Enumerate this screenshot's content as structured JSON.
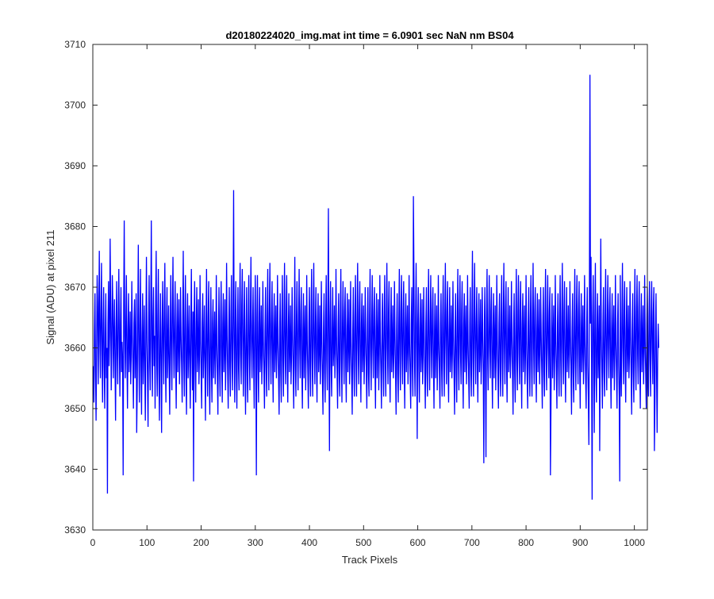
{
  "window": {
    "background": "#ffffff"
  },
  "chart_data": {
    "type": "line",
    "title": "d20180224020_img.mat int time = 6.0901 sec  NaN nm BS04",
    "xlabel": "Track Pixels",
    "ylabel": "Signal (ADU) at pixel 211",
    "xlim": [
      0,
      1024
    ],
    "ylim": [
      3630,
      3710
    ],
    "xticks": [
      0,
      100,
      200,
      300,
      400,
      500,
      600,
      700,
      800,
      900,
      1000
    ],
    "yticks": [
      3630,
      3640,
      3650,
      3660,
      3670,
      3680,
      3690,
      3700,
      3710
    ],
    "xtick_labels": [
      "0",
      "100",
      "200",
      "300",
      "400",
      "500",
      "600",
      "700",
      "800",
      "900",
      "1000"
    ],
    "ytick_labels": [
      "3630",
      "3640",
      "3650",
      "3660",
      "3670",
      "3680",
      "3690",
      "3700",
      "3710"
    ],
    "grid": false,
    "legend": "none",
    "colors": {
      "series": "#0000ff",
      "axes": "#262626",
      "background": "#ffffff"
    },
    "series": [
      {
        "x_start": 1,
        "x_step": 1,
        "values": [
          3657,
          3651,
          3663,
          3669,
          3656,
          3648,
          3660,
          3672,
          3667,
          3654,
          3665,
          3676,
          3661,
          3655,
          3666,
          3674,
          3659,
          3651,
          3664,
          3670,
          3657,
          3650,
          3662,
          3669,
          3655,
          3660,
          3636,
          3664,
          3671,
          3657,
          3662,
          3678,
          3666,
          3653,
          3660,
          3672,
          3667,
          3655,
          3662,
          3668,
          3657,
          3648,
          3663,
          3671,
          3659,
          3654,
          3665,
          3673,
          3660,
          3652,
          3664,
          3670,
          3656,
          3661,
          3658,
          3639,
          3667,
          3681,
          3662,
          3655,
          3664,
          3672,
          3658,
          3650,
          3663,
          3669,
          3656,
          3661,
          3666,
          3654,
          3659,
          3671,
          3662,
          3657,
          3650,
          3664,
          3668,
          3655,
          3661,
          3669,
          3646,
          3653,
          3665,
          3677,
          3659,
          3651,
          3664,
          3673,
          3657,
          3649,
          3662,
          3669,
          3654,
          3660,
          3667,
          3656,
          3648,
          3663,
          3675,
          3661,
          3655,
          3647,
          3664,
          3672,
          3658,
          3653,
          3666,
          3681,
          3660,
          3652,
          3665,
          3670,
          3657,
          3662,
          3650,
          3667,
          3676,
          3658,
          3652,
          3665,
          3673,
          3656,
          3648,
          3661,
          3669,
          3657,
          3646,
          3663,
          3671,
          3660,
          3654,
          3666,
          3674,
          3658,
          3651,
          3664,
          3670,
          3655,
          3660,
          3667,
          3656,
          3649,
          3663,
          3672,
          3659,
          3653,
          3666,
          3675,
          3661,
          3655,
          3664,
          3671,
          3657,
          3650,
          3663,
          3669,
          3656,
          3661,
          3668,
          3654,
          3659,
          3670,
          3662,
          3657,
          3651,
          3664,
          3676,
          3658,
          3652,
          3665,
          3672,
          3656,
          3649,
          3663,
          3669,
          3655,
          3660,
          3667,
          3657,
          3650,
          3664,
          3673,
          3659,
          3653,
          3666,
          3638,
          3665,
          3671,
          3657,
          3651,
          3664,
          3670,
          3656,
          3660,
          3668,
          3654,
          3659,
          3672,
          3661,
          3656,
          3650,
          3664,
          3669,
          3655,
          3660,
          3667,
          3657,
          3648,
          3663,
          3673,
          3658,
          3652,
          3665,
          3671,
          3656,
          3649,
          3662,
          3670,
          3657,
          3651,
          3664,
          3668,
          3655,
          3660,
          3666,
          3654,
          3659,
          3672,
          3661,
          3655,
          3649,
          3663,
          3670,
          3657,
          3652,
          3665,
          3671,
          3658,
          3651,
          3664,
          3669,
          3656,
          3660,
          3668,
          3653,
          3659,
          3674,
          3662,
          3656,
          3650,
          3663,
          3670,
          3657,
          3652,
          3665,
          3672,
          3658,
          3653,
          3666,
          3686,
          3661,
          3651,
          3664,
          3671,
          3656,
          3650,
          3663,
          3670,
          3657,
          3653,
          3666,
          3674,
          3659,
          3654,
          3667,
          3673,
          3660,
          3652,
          3664,
          3671,
          3657,
          3649,
          3662,
          3670,
          3656,
          3651,
          3664,
          3672,
          3659,
          3653,
          3666,
          3675,
          3660,
          3655,
          3663,
          3670,
          3657,
          3650,
          3664,
          3672,
          3658,
          3639,
          3665,
          3672,
          3657,
          3651,
          3664,
          3670,
          3656,
          3660,
          3667,
          3654,
          3659,
          3671,
          3661,
          3656,
          3650,
          3663,
          3670,
          3657,
          3652,
          3665,
          3673,
          3659,
          3653,
          3666,
          3674,
          3660,
          3654,
          3664,
          3671,
          3658,
          3651,
          3664,
          3669,
          3656,
          3661,
          3667,
          3655,
          3660,
          3672,
          3661,
          3655,
          3649,
          3663,
          3669,
          3656,
          3651,
          3664,
          3672,
          3658,
          3652,
          3665,
          3674,
          3659,
          3654,
          3666,
          3672,
          3657,
          3651,
          3663,
          3669,
          3656,
          3660,
          3667,
          3654,
          3659,
          3670,
          3662,
          3656,
          3650,
          3664,
          3675,
          3657,
          3652,
          3665,
          3671,
          3659,
          3653,
          3664,
          3673,
          3660,
          3655,
          3666,
          3670,
          3656,
          3650,
          3663,
          3669,
          3655,
          3661,
          3667,
          3653,
          3659,
          3672,
          3661,
          3656,
          3650,
          3664,
          3670,
          3657,
          3652,
          3665,
          3673,
          3658,
          3652,
          3665,
          3674,
          3660,
          3654,
          3664,
          3670,
          3657,
          3651,
          3664,
          3669,
          3656,
          3660,
          3667,
          3654,
          3659,
          3671,
          3661,
          3655,
          3649,
          3663,
          3669,
          3656,
          3651,
          3665,
          3672,
          3658,
          3653,
          3666,
          3683,
          3659,
          3643,
          3665,
          3671,
          3657,
          3652,
          3663,
          3670,
          3657,
          3660,
          3667,
          3655,
          3659,
          3673,
          3662,
          3656,
          3650,
          3664,
          3669,
          3656,
          3652,
          3665,
          3673,
          3658,
          3651,
          3664,
          3671,
          3660,
          3654,
          3666,
          3670,
          3657,
          3651,
          3663,
          3669,
          3656,
          3661,
          3668,
          3654,
          3659,
          3671,
          3661,
          3655,
          3649,
          3663,
          3670,
          3657,
          3652,
          3665,
          3672,
          3658,
          3652,
          3665,
          3674,
          3660,
          3654,
          3666,
          3671,
          3658,
          3651,
          3664,
          3669,
          3656,
          3660,
          3667,
          3654,
          3659,
          3670,
          3662,
          3656,
          3650,
          3664,
          3670,
          3656,
          3652,
          3665,
          3673,
          3659,
          3653,
          3664,
          3672,
          3660,
          3655,
          3666,
          3670,
          3657,
          3650,
          3663,
          3669,
          3655,
          3661,
          3668,
          3653,
          3659,
          3672,
          3661,
          3656,
          3650,
          3664,
          3669,
          3657,
          3652,
          3665,
          3672,
          3658,
          3652,
          3665,
          3674,
          3660,
          3654,
          3666,
          3671,
          3657,
          3651,
          3663,
          3670,
          3656,
          3660,
          3667,
          3655,
          3659,
          3671,
          3662,
          3656,
          3649,
          3663,
          3669,
          3656,
          3651,
          3664,
          3673,
          3658,
          3653,
          3666,
          3672,
          3659,
          3654,
          3666,
          3671,
          3657,
          3650,
          3664,
          3669,
          3656,
          3661,
          3667,
          3654,
          3659,
          3672,
          3661,
          3655,
          3650,
          3664,
          3670,
          3657,
          3652,
          3685,
          3672,
          3658,
          3652,
          3665,
          3674,
          3660,
          3645,
          3664,
          3670,
          3657,
          3651,
          3663,
          3669,
          3656,
          3660,
          3668,
          3654,
          3659,
          3670,
          3662,
          3656,
          3650,
          3664,
          3670,
          3656,
          3652,
          3665,
          3673,
          3659,
          3653,
          3664,
          3672,
          3660,
          3655,
          3666,
          3670,
          3657,
          3650,
          3663,
          3669,
          3655,
          3661,
          3667,
          3653,
          3659,
          3672,
          3661,
          3656,
          3650,
          3664,
          3669,
          3657,
          3652,
          3665,
          3672,
          3658,
          3652,
          3665,
          3674,
          3660,
          3654,
          3666,
          3671,
          3657,
          3651,
          3663,
          3670,
          3656,
          3660,
          3667,
          3655,
          3659,
          3671,
          3662,
          3656,
          3649,
          3663,
          3669,
          3656,
          3651,
          3664,
          3673,
          3658,
          3653,
          3666,
          3672,
          3659,
          3654,
          3666,
          3671,
          3657,
          3650,
          3664,
          3669,
          3656,
          3661,
          3667,
          3654,
          3659,
          3672,
          3661,
          3655,
          3650,
          3664,
          3670,
          3657,
          3652,
          3665,
          3676,
          3658,
          3652,
          3665,
          3674,
          3660,
          3654,
          3664,
          3670,
          3657,
          3651,
          3663,
          3669,
          3656,
          3660,
          3668,
          3654,
          3659,
          3670,
          3662,
          3656,
          3641,
          3664,
          3670,
          3656,
          3642,
          3665,
          3673,
          3659,
          3653,
          3664,
          3672,
          3660,
          3655,
          3666,
          3670,
          3657,
          3650,
          3663,
          3669,
          3655,
          3661,
          3667,
          3653,
          3659,
          3672,
          3661,
          3656,
          3650,
          3664,
          3669,
          3657,
          3652,
          3665,
          3672,
          3658,
          3652,
          3665,
          3674,
          3660,
          3654,
          3666,
          3671,
          3657,
          3651,
          3663,
          3670,
          3656,
          3660,
          3667,
          3655,
          3659,
          3671,
          3662,
          3656,
          3649,
          3663,
          3669,
          3656,
          3651,
          3664,
          3673,
          3658,
          3653,
          3666,
          3672,
          3659,
          3654,
          3666,
          3671,
          3657,
          3650,
          3664,
          3669,
          3656,
          3661,
          3667,
          3654,
          3659,
          3672,
          3661,
          3655,
          3650,
          3664,
          3670,
          3657,
          3652,
          3665,
          3672,
          3658,
          3652,
          3665,
          3674,
          3660,
          3654,
          3666,
          3670,
          3657,
          3651,
          3663,
          3669,
          3656,
          3660,
          3668,
          3654,
          3659,
          3670,
          3662,
          3656,
          3650,
          3664,
          3670,
          3656,
          3652,
          3665,
          3673,
          3659,
          3653,
          3664,
          3672,
          3660,
          3655,
          3666,
          3670,
          3639,
          3650,
          3663,
          3669,
          3655,
          3661,
          3667,
          3653,
          3659,
          3672,
          3661,
          3656,
          3650,
          3664,
          3669,
          3657,
          3652,
          3665,
          3672,
          3658,
          3652,
          3665,
          3674,
          3660,
          3654,
          3666,
          3671,
          3657,
          3651,
          3663,
          3670,
          3656,
          3660,
          3667,
          3655,
          3659,
          3671,
          3662,
          3656,
          3649,
          3663,
          3669,
          3656,
          3651,
          3664,
          3673,
          3658,
          3653,
          3666,
          3672,
          3659,
          3654,
          3666,
          3671,
          3657,
          3650,
          3664,
          3669,
          3656,
          3661,
          3667,
          3654,
          3659,
          3672,
          3661,
          3655,
          3650,
          3664,
          3670,
          3657,
          3652,
          3644,
          3669,
          3705,
          3664,
          3675,
          3658,
          3635,
          3665,
          3672,
          3660,
          3646,
          3664,
          3674,
          3656,
          3651,
          3663,
          3669,
          3655,
          3660,
          3667,
          3643,
          3659,
          3678,
          3662,
          3656,
          3650,
          3664,
          3670,
          3656,
          3652,
          3665,
          3673,
          3659,
          3653,
          3664,
          3672,
          3660,
          3655,
          3666,
          3670,
          3657,
          3650,
          3663,
          3669,
          3655,
          3661,
          3667,
          3653,
          3659,
          3672,
          3661,
          3656,
          3650,
          3664,
          3669,
          3657,
          3652,
          3638,
          3672,
          3658,
          3652,
          3665,
          3674,
          3660,
          3654,
          3666,
          3671,
          3657,
          3651,
          3663,
          3670,
          3656,
          3660,
          3667,
          3655,
          3659,
          3671,
          3662,
          3656,
          3649,
          3663,
          3669,
          3656,
          3651,
          3664,
          3673,
          3658,
          3653,
          3666,
          3672,
          3659,
          3654,
          3666,
          3671,
          3657,
          3650,
          3664,
          3669,
          3656,
          3661,
          3667,
          3654,
          3659,
          3672,
          3661,
          3655,
          3650,
          3664,
          3670,
          3657,
          3652,
          3665,
          3671,
          3658,
          3652,
          3665,
          3671,
          3660,
          3654,
          3666,
          3670,
          3643,
          3651,
          3663,
          3669,
          3656,
          3646,
          3658,
          3664,
          3660
        ]
      }
    ]
  }
}
